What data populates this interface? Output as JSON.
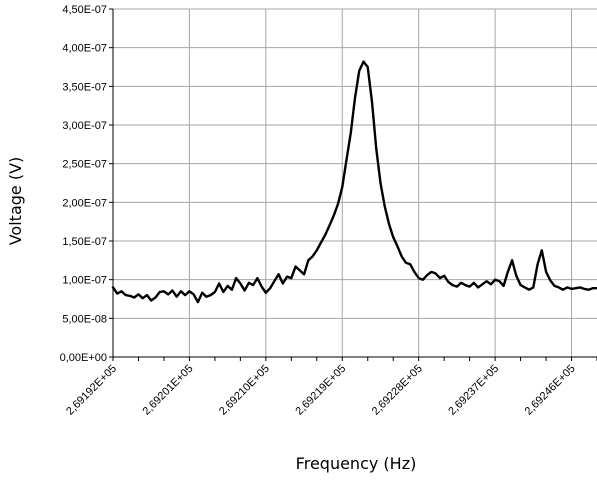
{
  "chart_data": {
    "type": "line",
    "title": "",
    "xlabel": "Frequency (Hz)",
    "ylabel": "Voltage (V)",
    "grid": true,
    "legend": "none",
    "x_tick_labels": [
      "2,69192E+05",
      "2,69201E+05",
      "2,69210E+05",
      "2,69219E+05",
      "2,69228E+05",
      "2,69237E+05",
      "2,69246E+05"
    ],
    "x_ticks": [
      269192,
      269201,
      269210,
      269219,
      269228,
      269237,
      269246
    ],
    "xlim": [
      269192,
      269249
    ],
    "y_tick_labels": [
      "0,00E+00",
      "5,00E-08",
      "1,00E-07",
      "1,50E-07",
      "2,00E-07",
      "2,50E-07",
      "3,00E-07",
      "3,50E-07",
      "4,00E-07",
      "4,50E-07"
    ],
    "y_ticks": [
      0,
      5e-08,
      1e-07,
      1.5e-07,
      2e-07,
      2.5e-07,
      3e-07,
      3.5e-07,
      4e-07,
      4.5e-07
    ],
    "ylim": [
      0,
      4.5e-07
    ],
    "series": [
      {
        "color": "#000000",
        "x": [
          269192.0,
          269192.5,
          269193.0,
          269193.5,
          269194.0,
          269194.5,
          269195.0,
          269195.5,
          269196.0,
          269196.5,
          269197.0,
          269197.5,
          269198.0,
          269198.5,
          269199.0,
          269199.5,
          269200.0,
          269200.5,
          269201.0,
          269201.5,
          269202.0,
          269202.5,
          269203.0,
          269203.5,
          269204.0,
          269204.5,
          269205.0,
          269205.5,
          269206.0,
          269206.5,
          269207.0,
          269207.5,
          269208.0,
          269208.5,
          269209.0,
          269209.5,
          269210.0,
          269210.5,
          269211.0,
          269211.5,
          269212.0,
          269212.5,
          269213.0,
          269213.5,
          269214.0,
          269214.5,
          269215.0,
          269215.5,
          269216.0,
          269216.5,
          269217.0,
          269217.5,
          269218.0,
          269218.5,
          269219.0,
          269219.5,
          269220.0,
          269220.5,
          269221.0,
          269221.5,
          269222.0,
          269222.5,
          269223.0,
          269223.5,
          269224.0,
          269224.5,
          269225.0,
          269225.5,
          269226.0,
          269226.5,
          269227.0,
          269227.5,
          269228.0,
          269228.5,
          269229.0,
          269229.5,
          269230.0,
          269230.5,
          269231.0,
          269231.5,
          269232.0,
          269232.5,
          269233.0,
          269233.5,
          269234.0,
          269234.5,
          269235.0,
          269235.5,
          269236.0,
          269236.5,
          269237.0,
          269237.5,
          269238.0,
          269238.5,
          269239.0,
          269239.5,
          269240.0,
          269240.5,
          269241.0,
          269241.5,
          269242.0,
          269242.5,
          269243.0,
          269243.5,
          269244.0,
          269244.5,
          269245.0,
          269245.5,
          269246.0,
          269246.5,
          269247.0,
          269247.5,
          269248.0,
          269248.5,
          269249.0
        ],
        "y": [
          9e-08,
          8.2e-08,
          8.5e-08,
          8e-08,
          7.9e-08,
          7.7e-08,
          8.1e-08,
          7.6e-08,
          8e-08,
          7.3e-08,
          7.7e-08,
          8.4e-08,
          8.5e-08,
          8.1e-08,
          8.6e-08,
          7.8e-08,
          8.5e-08,
          8e-08,
          8.5e-08,
          8.1e-08,
          7.1e-08,
          8.3e-08,
          7.8e-08,
          8e-08,
          8.4e-08,
          9.5e-08,
          8.4e-08,
          9.2e-08,
          8.7e-08,
          1.02e-07,
          9.5e-08,
          8.6e-08,
          9.6e-08,
          9.3e-08,
          1.02e-07,
          9.1e-08,
          8.3e-08,
          8.9e-08,
          9.8e-08,
          1.07e-07,
          9.5e-08,
          1.04e-07,
          1.02e-07,
          1.17e-07,
          1.12e-07,
          1.07e-07,
          1.25e-07,
          1.3e-07,
          1.38e-07,
          1.48e-07,
          1.58e-07,
          1.7e-07,
          1.83e-07,
          1.98e-07,
          2.2e-07,
          2.55e-07,
          2.9e-07,
          3.35e-07,
          3.7e-07,
          3.82e-07,
          3.75e-07,
          3.3e-07,
          2.7e-07,
          2.25e-07,
          1.95e-07,
          1.72e-07,
          1.55e-07,
          1.43e-07,
          1.3e-07,
          1.22e-07,
          1.2e-07,
          1.1e-07,
          1.02e-07,
          1e-07,
          1.06e-07,
          1.1e-07,
          1.08e-07,
          1.02e-07,
          1.05e-07,
          9.7e-08,
          9.3e-08,
          9.1e-08,
          9.6e-08,
          9.3e-08,
          9.1e-08,
          9.6e-08,
          9e-08,
          9.4e-08,
          9.8e-08,
          9.4e-08,
          1e-07,
          9.8e-08,
          9.2e-08,
          1.1e-07,
          1.25e-07,
          1.05e-07,
          9.3e-08,
          9e-08,
          8.7e-08,
          9e-08,
          1.2e-07,
          1.38e-07,
          1.1e-07,
          9.9e-08,
          9.2e-08,
          9e-08,
          8.7e-08,
          9e-08,
          8.8e-08,
          8.9e-08,
          9e-08,
          8.8e-08,
          8.7e-08,
          8.9e-08,
          8.9e-08
        ]
      }
    ]
  }
}
